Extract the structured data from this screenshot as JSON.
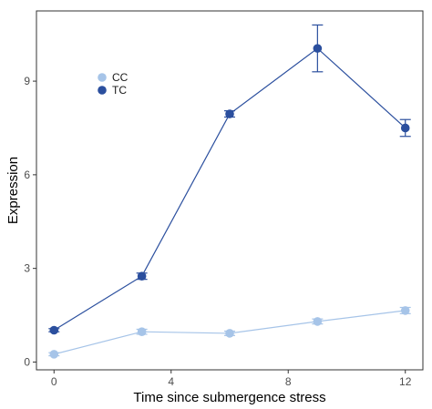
{
  "chart_data": {
    "type": "line",
    "xlabel": "Time since submergence stress",
    "ylabel": "Expression",
    "xlim": [
      -0.6,
      12.6
    ],
    "ylim": [
      -0.25,
      11.25
    ],
    "xticks": [
      0,
      4,
      8,
      12
    ],
    "yticks": [
      0,
      3,
      6,
      9
    ],
    "x": [
      0,
      3,
      6,
      9,
      12
    ],
    "legend_position": "top-left",
    "grid": false,
    "series": [
      {
        "name": "CC",
        "color": "#a6c4e8",
        "values": [
          0.25,
          0.97,
          0.92,
          1.3,
          1.65
        ],
        "errors": [
          0.05,
          0.08,
          0.07,
          0.08,
          0.1
        ]
      },
      {
        "name": "TC",
        "color": "#2b4f9e",
        "values": [
          1.02,
          2.75,
          7.95,
          10.05,
          7.5
        ],
        "errors": [
          0.05,
          0.1,
          0.1,
          0.75,
          0.27
        ]
      }
    ]
  }
}
